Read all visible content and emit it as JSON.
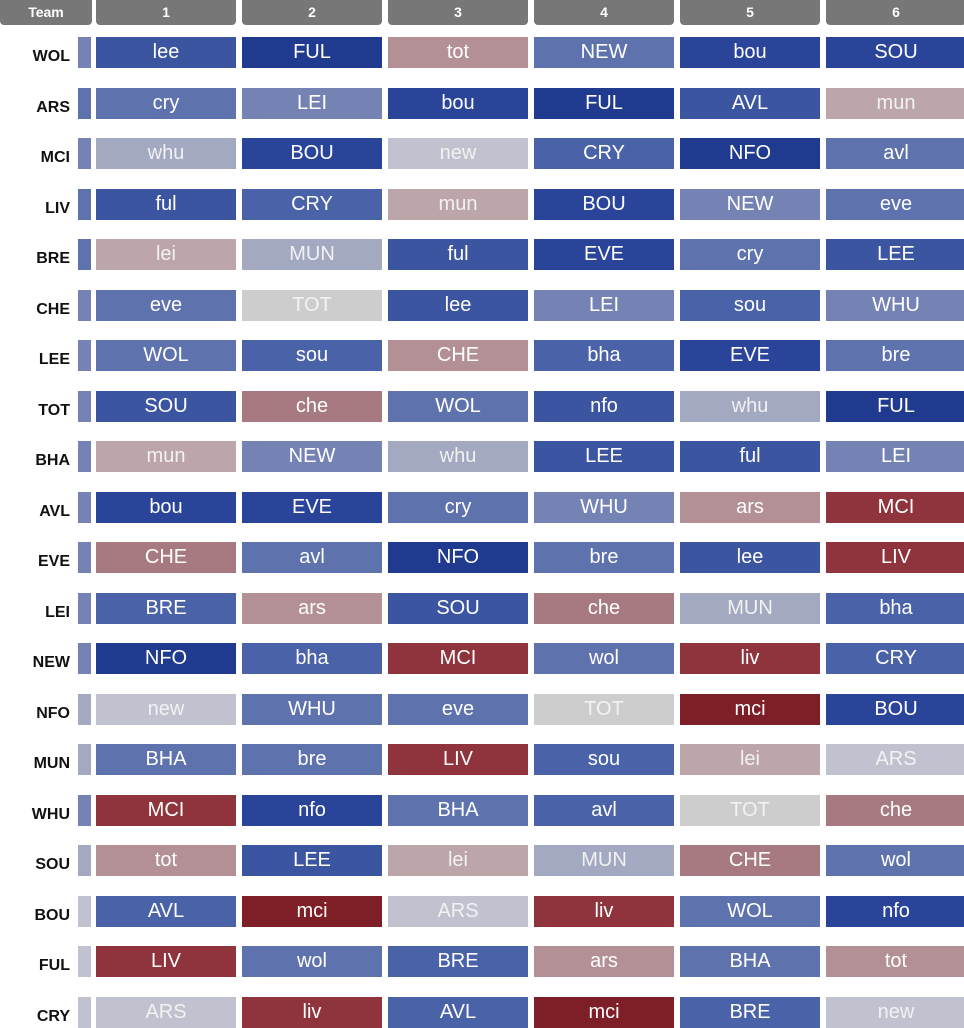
{
  "header": {
    "team_label": "Team",
    "columns": [
      "1",
      "2",
      "3",
      "4",
      "5",
      "6"
    ]
  },
  "palette": {
    "B1": "#1f3a8f",
    "B2": "#2a449a",
    "B3": "#3c55a0",
    "B4": "#4a62a8",
    "B5": "#5e72ad",
    "B6": "#7583b4",
    "G1": "#a3a9c0",
    "G2": "#c0c3cf",
    "G3": "#cdcdcd",
    "P1": "#bda6aa",
    "P2": "#b29096",
    "P3": "#a67a80",
    "R1": "#8f343c",
    "R2": "#7e1e26",
    "header_bg": "#777777",
    "header_text": "#ffffff"
  },
  "rows": [
    {
      "team": "WOL",
      "strip": "B6",
      "cells": [
        {
          "t": "lee",
          "c": "B3"
        },
        {
          "t": "FUL",
          "c": "B1"
        },
        {
          "t": "tot",
          "c": "P2"
        },
        {
          "t": "NEW",
          "c": "B5"
        },
        {
          "t": "bou",
          "c": "B2"
        },
        {
          "t": "SOU",
          "c": "B2"
        }
      ]
    },
    {
      "team": "ARS",
      "strip": "B5",
      "cells": [
        {
          "t": "cry",
          "c": "B5"
        },
        {
          "t": "LEI",
          "c": "B6"
        },
        {
          "t": "bou",
          "c": "B2"
        },
        {
          "t": "FUL",
          "c": "B1"
        },
        {
          "t": "AVL",
          "c": "B3"
        },
        {
          "t": "mun",
          "c": "P1"
        }
      ]
    },
    {
      "team": "MCI",
      "strip": "B6",
      "cells": [
        {
          "t": "whu",
          "c": "G1"
        },
        {
          "t": "BOU",
          "c": "B2"
        },
        {
          "t": "new",
          "c": "G2"
        },
        {
          "t": "CRY",
          "c": "B4"
        },
        {
          "t": "NFO",
          "c": "B1"
        },
        {
          "t": "avl",
          "c": "B5"
        }
      ]
    },
    {
      "team": "LIV",
      "strip": "B5",
      "cells": [
        {
          "t": "ful",
          "c": "B3"
        },
        {
          "t": "CRY",
          "c": "B4"
        },
        {
          "t": "mun",
          "c": "P1"
        },
        {
          "t": "BOU",
          "c": "B2"
        },
        {
          "t": "NEW",
          "c": "B6"
        },
        {
          "t": "eve",
          "c": "B5"
        }
      ]
    },
    {
      "team": "BRE",
      "strip": "B5",
      "cells": [
        {
          "t": "lei",
          "c": "P1"
        },
        {
          "t": "MUN",
          "c": "G1"
        },
        {
          "t": "ful",
          "c": "B3"
        },
        {
          "t": "EVE",
          "c": "B2"
        },
        {
          "t": "cry",
          "c": "B5"
        },
        {
          "t": "LEE",
          "c": "B3"
        }
      ]
    },
    {
      "team": "CHE",
      "strip": "B6",
      "cells": [
        {
          "t": "eve",
          "c": "B5"
        },
        {
          "t": "TOT",
          "c": "G3"
        },
        {
          "t": "lee",
          "c": "B3"
        },
        {
          "t": "LEI",
          "c": "B6"
        },
        {
          "t": "sou",
          "c": "B4"
        },
        {
          "t": "WHU",
          "c": "B6"
        }
      ]
    },
    {
      "team": "LEE",
      "strip": "B6",
      "cells": [
        {
          "t": "WOL",
          "c": "B5"
        },
        {
          "t": "sou",
          "c": "B4"
        },
        {
          "t": "CHE",
          "c": "P2"
        },
        {
          "t": "bha",
          "c": "B4"
        },
        {
          "t": "EVE",
          "c": "B2"
        },
        {
          "t": "bre",
          "c": "B5"
        }
      ]
    },
    {
      "team": "TOT",
      "strip": "B6",
      "cells": [
        {
          "t": "SOU",
          "c": "B3"
        },
        {
          "t": "che",
          "c": "P3"
        },
        {
          "t": "WOL",
          "c": "B5"
        },
        {
          "t": "nfo",
          "c": "B3"
        },
        {
          "t": "whu",
          "c": "G1"
        },
        {
          "t": "FUL",
          "c": "B1"
        }
      ]
    },
    {
      "team": "BHA",
      "strip": "B6",
      "cells": [
        {
          "t": "mun",
          "c": "P1"
        },
        {
          "t": "NEW",
          "c": "B6"
        },
        {
          "t": "whu",
          "c": "G1"
        },
        {
          "t": "LEE",
          "c": "B3"
        },
        {
          "t": "ful",
          "c": "B3"
        },
        {
          "t": "LEI",
          "c": "B6"
        }
      ]
    },
    {
      "team": "AVL",
      "strip": "B6",
      "cells": [
        {
          "t": "bou",
          "c": "B2"
        },
        {
          "t": "EVE",
          "c": "B2"
        },
        {
          "t": "cry",
          "c": "B5"
        },
        {
          "t": "WHU",
          "c": "B6"
        },
        {
          "t": "ars",
          "c": "P2"
        },
        {
          "t": "MCI",
          "c": "R1"
        }
      ]
    },
    {
      "team": "EVE",
      "strip": "B6",
      "cells": [
        {
          "t": "CHE",
          "c": "P3"
        },
        {
          "t": "avl",
          "c": "B5"
        },
        {
          "t": "NFO",
          "c": "B1"
        },
        {
          "t": "bre",
          "c": "B5"
        },
        {
          "t": "lee",
          "c": "B3"
        },
        {
          "t": "LIV",
          "c": "R1"
        }
      ]
    },
    {
      "team": "LEI",
      "strip": "B6",
      "cells": [
        {
          "t": "BRE",
          "c": "B4"
        },
        {
          "t": "ars",
          "c": "P2"
        },
        {
          "t": "SOU",
          "c": "B3"
        },
        {
          "t": "che",
          "c": "P3"
        },
        {
          "t": "MUN",
          "c": "G1"
        },
        {
          "t": "bha",
          "c": "B4"
        }
      ]
    },
    {
      "team": "NEW",
      "strip": "B6",
      "cells": [
        {
          "t": "NFO",
          "c": "B1"
        },
        {
          "t": "bha",
          "c": "B4"
        },
        {
          "t": "MCI",
          "c": "R1"
        },
        {
          "t": "wol",
          "c": "B5"
        },
        {
          "t": "liv",
          "c": "R1"
        },
        {
          "t": "CRY",
          "c": "B4"
        }
      ]
    },
    {
      "team": "NFO",
      "strip": "G1",
      "cells": [
        {
          "t": "new",
          "c": "G2"
        },
        {
          "t": "WHU",
          "c": "B5"
        },
        {
          "t": "eve",
          "c": "B5"
        },
        {
          "t": "TOT",
          "c": "G3"
        },
        {
          "t": "mci",
          "c": "R2"
        },
        {
          "t": "BOU",
          "c": "B2"
        }
      ]
    },
    {
      "team": "MUN",
      "strip": "G1",
      "cells": [
        {
          "t": "BHA",
          "c": "B5"
        },
        {
          "t": "bre",
          "c": "B5"
        },
        {
          "t": "LIV",
          "c": "R1"
        },
        {
          "t": "sou",
          "c": "B4"
        },
        {
          "t": "lei",
          "c": "P1"
        },
        {
          "t": "ARS",
          "c": "G2"
        }
      ]
    },
    {
      "team": "WHU",
      "strip": "B6",
      "cells": [
        {
          "t": "MCI",
          "c": "R1"
        },
        {
          "t": "nfo",
          "c": "B2"
        },
        {
          "t": "BHA",
          "c": "B5"
        },
        {
          "t": "avl",
          "c": "B4"
        },
        {
          "t": "TOT",
          "c": "G3"
        },
        {
          "t": "che",
          "c": "P3"
        }
      ]
    },
    {
      "team": "SOU",
      "strip": "G1",
      "cells": [
        {
          "t": "tot",
          "c": "P2"
        },
        {
          "t": "LEE",
          "c": "B3"
        },
        {
          "t": "lei",
          "c": "P1"
        },
        {
          "t": "MUN",
          "c": "G1"
        },
        {
          "t": "CHE",
          "c": "P3"
        },
        {
          "t": "wol",
          "c": "B5"
        }
      ]
    },
    {
      "team": "BOU",
      "strip": "G2",
      "cells": [
        {
          "t": "AVL",
          "c": "B4"
        },
        {
          "t": "mci",
          "c": "R2"
        },
        {
          "t": "ARS",
          "c": "G2"
        },
        {
          "t": "liv",
          "c": "R1"
        },
        {
          "t": "WOL",
          "c": "B5"
        },
        {
          "t": "nfo",
          "c": "B2"
        }
      ]
    },
    {
      "team": "FUL",
      "strip": "G2",
      "cells": [
        {
          "t": "LIV",
          "c": "R1"
        },
        {
          "t": "wol",
          "c": "B5"
        },
        {
          "t": "BRE",
          "c": "B4"
        },
        {
          "t": "ars",
          "c": "P2"
        },
        {
          "t": "BHA",
          "c": "B5"
        },
        {
          "t": "tot",
          "c": "P2"
        }
      ]
    },
    {
      "team": "CRY",
      "strip": "G2",
      "cells": [
        {
          "t": "ARS",
          "c": "G2"
        },
        {
          "t": "liv",
          "c": "R1"
        },
        {
          "t": "AVL",
          "c": "B4"
        },
        {
          "t": "mci",
          "c": "R2"
        },
        {
          "t": "BRE",
          "c": "B4"
        },
        {
          "t": "new",
          "c": "G2"
        }
      ]
    }
  ]
}
